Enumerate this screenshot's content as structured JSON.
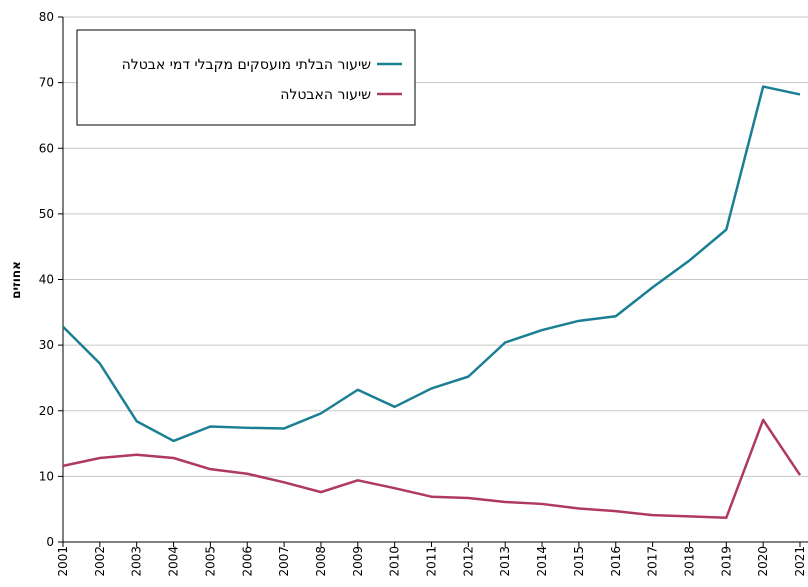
{
  "chart_data": {
    "type": "line",
    "y_label": "אחוזים",
    "x": [
      "2001",
      "2002",
      "2003",
      "2004",
      "2005",
      "2006",
      "2007",
      "2008",
      "2009",
      "2010",
      "2011",
      "2012",
      "2013",
      "2014",
      "2015",
      "2016",
      "2017",
      "2018",
      "2019",
      "2020",
      "2021"
    ],
    "series": [
      {
        "name": "שיעור הבלתי מועסקים מקבלי דמי אבטלה",
        "color": "#1b7f93",
        "values": [
          32.8,
          27.2,
          18.4,
          15.4,
          17.6,
          17.4,
          17.3,
          19.6,
          23.2,
          20.6,
          23.4,
          25.2,
          30.4,
          32.3,
          33.7,
          34.4,
          38.8,
          42.9,
          47.6,
          69.4,
          68.2
        ]
      },
      {
        "name": "שיעור האבטלה",
        "color": "#b03a5e",
        "values": [
          11.6,
          12.8,
          13.3,
          12.8,
          11.1,
          10.4,
          9.1,
          7.6,
          9.4,
          8.2,
          6.9,
          6.7,
          6.1,
          5.8,
          5.1,
          4.7,
          4.1,
          3.9,
          3.7,
          18.6,
          10.2
        ]
      }
    ],
    "ylim": [
      0,
      80
    ],
    "yticks": [
      0,
      10,
      20,
      30,
      40,
      50,
      60,
      70,
      80
    ],
    "grid": true,
    "legend": "upper left"
  }
}
